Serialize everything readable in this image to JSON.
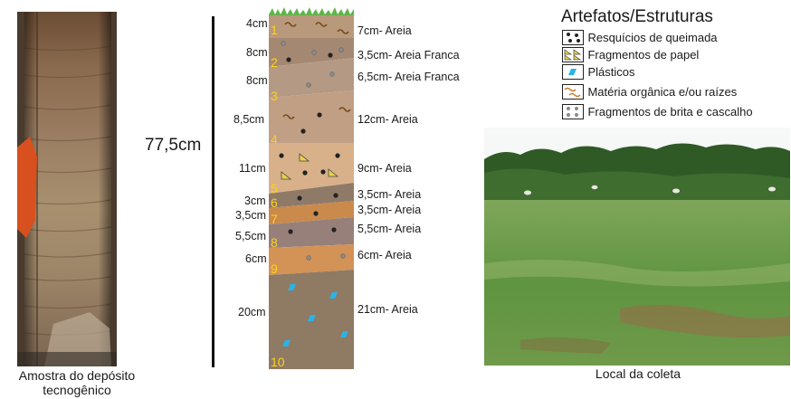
{
  "captions": {
    "sample_line1": "Amostra do depósito",
    "sample_line2": "tecnogênico",
    "site": "Local da coleta"
  },
  "profile": {
    "total_depth": "77,5cm",
    "layers": [
      {
        "number": "1",
        "left_label": "4cm",
        "right_label": "7cm- Areia",
        "color": "#b8997c"
      },
      {
        "number": "2",
        "left_label": "8cm",
        "right_label": "3,5cm- Areia Franca",
        "color": "#a48872"
      },
      {
        "number": "3",
        "left_label": "8cm",
        "right_label": "6,5cm- Areia Franca",
        "color": "#b49a85"
      },
      {
        "number": "4",
        "left_label": "8,5cm",
        "right_label": "12cm- Areia",
        "color": "#c09f84"
      },
      {
        "number": "5",
        "left_label": "11cm",
        "right_label": "9cm- Areia",
        "color": "#d8b08a"
      },
      {
        "number": "6",
        "left_label": "3cm",
        "right_label": "3,5cm- Areia",
        "color": "#8f7a68"
      },
      {
        "number": "7",
        "left_label": "3,5cm",
        "right_label": "3,5cm- Areia",
        "color": "#c98a4c"
      },
      {
        "number": "8",
        "left_label": "5,5cm",
        "right_label": "5,5cm- Areia",
        "color": "#97807a"
      },
      {
        "number": "9",
        "left_label": "6cm",
        "right_label": "6cm- Areia",
        "color": "#d39256"
      },
      {
        "number": "10",
        "left_label": "20cm",
        "right_label": "21cm- Areia",
        "color": "#8f7a64"
      }
    ]
  },
  "legend": {
    "title": "Artefatos/Estruturas",
    "items": [
      {
        "icon": "burn-residue-icon",
        "label": "Resquícios de queimada"
      },
      {
        "icon": "paper-fragment-icon",
        "label": "Fragmentos de papel"
      },
      {
        "icon": "plastic-icon",
        "label": "Plásticos"
      },
      {
        "icon": "organic-matter-icon",
        "label": "Matéria orgânica e/ou raízes"
      },
      {
        "icon": "gravel-icon",
        "label": "Fragmentos de brita e cascalho"
      }
    ]
  },
  "colors": {
    "grass": "#62b34a",
    "plastic": "#2ab3e6",
    "paper": "#e8d24a",
    "organic": "#7a4a1a",
    "burn": "#222222",
    "gravel": "#8a8a8a",
    "layer_number": "#ffd21a"
  }
}
